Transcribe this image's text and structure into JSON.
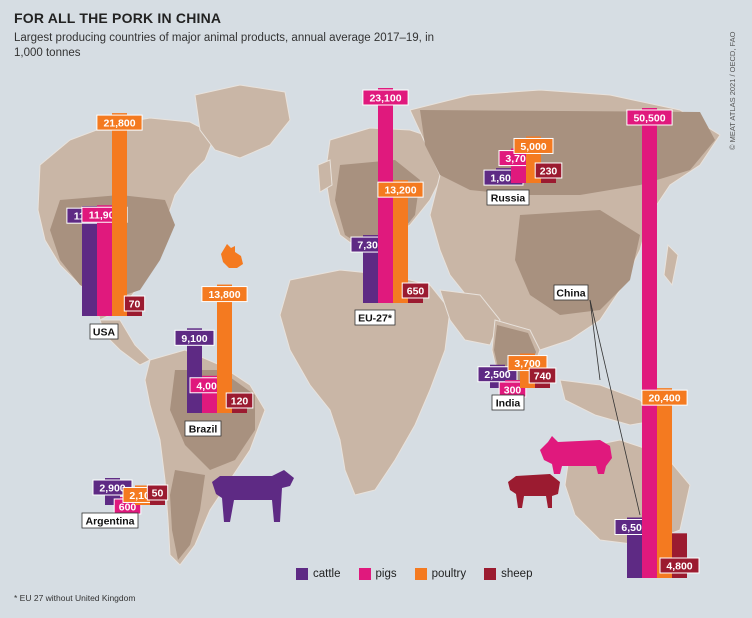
{
  "title": "FOR ALL THE PORK IN CHINA",
  "subtitle": "Largest producing countries of major animal products, annual average 2017–19, in 1,000 tonnes",
  "credit": "© MEAT ATLAS 2021 / OECD, FAO",
  "footnote": "* EU 27 without United Kingdom",
  "colors": {
    "background": "#d6dde3",
    "land": "#c9b6a6",
    "cattle": "#5e2a84",
    "pigs": "#e0197d",
    "poultry": "#f47a20",
    "sheep": "#9b1b30"
  },
  "icons": [
    "cattle-icon",
    "pig-icon",
    "sheep-icon",
    "rooster-icon"
  ],
  "legend": [
    {
      "key": "cattle",
      "label": "cattle"
    },
    {
      "key": "pigs",
      "label": "pigs"
    },
    {
      "key": "poultry",
      "label": "poultry"
    },
    {
      "key": "sheep",
      "label": "sheep"
    }
  ],
  "chart_data": {
    "type": "bar",
    "title": "FOR ALL THE PORK IN CHINA",
    "subtitle": "Largest producing countries of major animal products, annual average 2017–19, in 1,000 tonnes",
    "units": "1,000 tonnes",
    "series_order": [
      "cattle",
      "pigs",
      "poultry",
      "sheep"
    ],
    "countries": [
      {
        "name": "USA",
        "cattle": 11800,
        "pigs": 11900,
        "poultry": 21800,
        "sheep": 70,
        "labels": {
          "cattle": "11,800",
          "pigs": "11,900",
          "poultry": "21,800",
          "sheep": "70"
        }
      },
      {
        "name": "EU-27*",
        "cattle": 7300,
        "pigs": 23100,
        "poultry": 13200,
        "sheep": 650,
        "labels": {
          "cattle": "7,300",
          "pigs": "23,100",
          "poultry": "13,200",
          "sheep": "650"
        }
      },
      {
        "name": "Russia",
        "cattle": 1600,
        "pigs": 3700,
        "poultry": 5000,
        "sheep": 230,
        "labels": {
          "cattle": "1,600",
          "pigs": "3,700",
          "poultry": "5,000",
          "sheep": "230"
        }
      },
      {
        "name": "Brazil",
        "cattle": 9100,
        "pigs": 4000,
        "poultry": 13800,
        "sheep": 120,
        "labels": {
          "cattle": "9,100",
          "pigs": "4,000",
          "poultry": "13,800",
          "sheep": "120"
        }
      },
      {
        "name": "India",
        "cattle": 2500,
        "pigs": 300,
        "poultry": 3700,
        "sheep": 740,
        "labels": {
          "cattle": "2,500",
          "pigs": "300",
          "poultry": "3,700",
          "sheep": "740"
        }
      },
      {
        "name": "Argentina",
        "cattle": 2900,
        "pigs": 600,
        "poultry": 2100,
        "sheep": 50,
        "labels": {
          "cattle": "2,900",
          "pigs": "600",
          "poultry": "2,100",
          "sheep": "50"
        }
      },
      {
        "name": "China",
        "cattle": 6500,
        "pigs": 50500,
        "poultry": 20400,
        "sheep": 4800,
        "labels": {
          "cattle": "6,500",
          "pigs": "50,500",
          "poultry": "20,400",
          "sheep": "4,800"
        }
      }
    ]
  }
}
